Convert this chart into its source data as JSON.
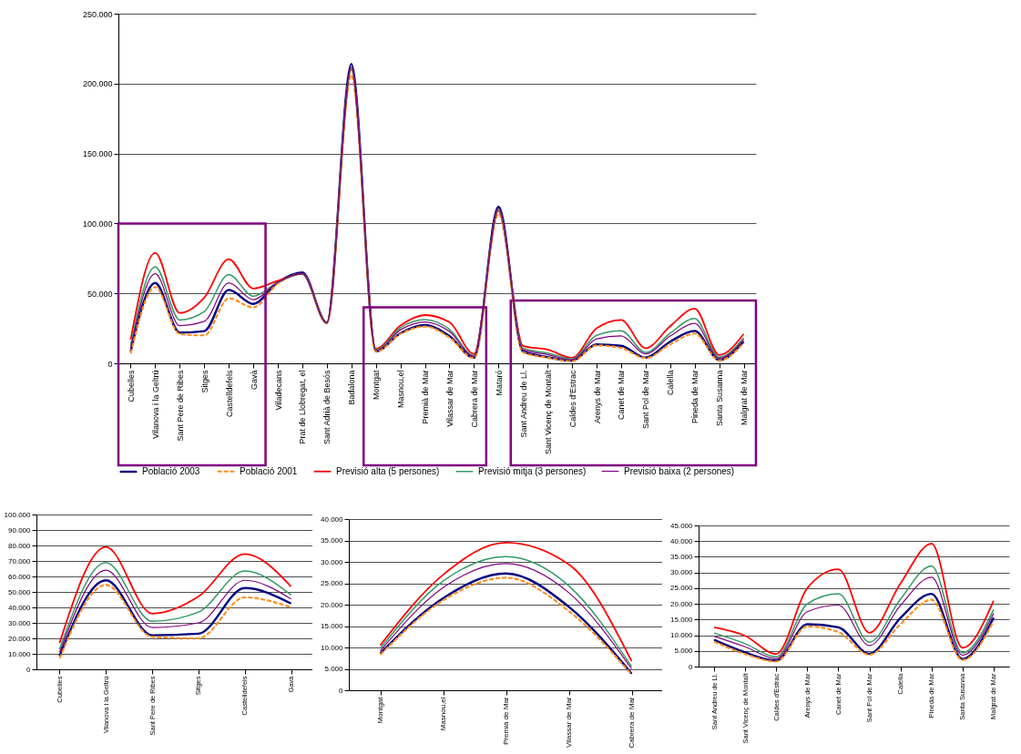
{
  "chart_data": [
    {
      "type": "line",
      "categories": [
        "Cubelles",
        "Vilanova i la Geltrú",
        "Sant Pere de Ribes",
        "Sitges",
        "Castelldefels",
        "Gavà",
        "Viladecans",
        "Prat de Llobregat, el",
        "Sant Adrià de Besós",
        "Badalona",
        "Montgat",
        "Masnou,el",
        "Premià de Mar",
        "Vilassar de Mar",
        "Cabrera de Mar",
        "Mataró",
        "Sant Andreu de Ll.",
        "Sant Vicenç de Montalt",
        "Caldes d'Estrac",
        "Arenys de Mar",
        "Canet de Mar",
        "Sant Pol de Mar",
        "Calella",
        "Pineda de Mar",
        "Santa Susanna",
        "Malgrat de Mar"
      ],
      "series": [
        {
          "name": "Població 2003",
          "color": "#000080",
          "line_style": "solid",
          "values": [
            8500,
            57500,
            22000,
            23000,
            52500,
            42500,
            58000,
            65000,
            29000,
            214000,
            8600,
            21500,
            27300,
            19500,
            3900,
            112000,
            8500,
            4500,
            1900,
            13500,
            12500,
            4100,
            15500,
            23200,
            2400,
            15600
          ]
        },
        {
          "name": "Població 2001",
          "color": "#ff8c1a",
          "line_style": "dashed",
          "values": [
            7000,
            54500,
            21000,
            20000,
            46500,
            40000,
            57000,
            64000,
            28500,
            206000,
            8300,
            21000,
            26300,
            18500,
            3700,
            107000,
            7900,
            4000,
            1600,
            12800,
            11000,
            3800,
            13500,
            21300,
            2100,
            14500
          ]
        },
        {
          "name": "Previsió alta (5 persones)",
          "color": "#ff0000",
          "line_style": "solid",
          "values": [
            17000,
            79000,
            36000,
            47000,
            74500,
            53500,
            59000,
            64000,
            29000,
            210000,
            10500,
            27000,
            34500,
            29400,
            6800,
            109000,
            12500,
            9800,
            4000,
            25000,
            31000,
            10800,
            26500,
            39200,
            6000,
            21000
          ]
        },
        {
          "name": "Previsió mitja (3 persones)",
          "color": "#339966",
          "line_style": "solid",
          "values": [
            13000,
            69000,
            31000,
            37000,
            63500,
            48000,
            58000,
            64000,
            29000,
            211000,
            9800,
            25500,
            31200,
            24400,
            5500,
            110000,
            10700,
            7300,
            3100,
            20000,
            23200,
            7800,
            21500,
            32100,
            4400,
            18200
          ]
        },
        {
          "name": "Previsió baixa (2 persones)",
          "color": "#800080",
          "line_style": "solid",
          "values": [
            11000,
            64000,
            27000,
            30000,
            57500,
            45500,
            58000,
            64000,
            29000,
            212000,
            9200,
            24000,
            29600,
            22800,
            5000,
            111000,
            9700,
            6300,
            2500,
            17500,
            19600,
            6700,
            19500,
            28500,
            3600,
            17000
          ]
        }
      ],
      "ylim": [
        0,
        250000
      ],
      "yticks": [
        {
          "value": 0,
          "label": "0"
        },
        {
          "value": 50000,
          "label": "50.000"
        },
        {
          "value": 100000,
          "label": "100.000"
        },
        {
          "value": 150000,
          "label": "150.000"
        },
        {
          "value": 200000,
          "label": "200.000"
        },
        {
          "value": 250000,
          "label": "250.000"
        }
      ],
      "grid": "y",
      "legend": "bottom"
    },
    {
      "type": "line",
      "categories": [
        "Cubelles",
        "Vilanova i la Geltrú",
        "Sant Pere de Ribes",
        "Sitges",
        "Castelldefels",
        "Gavà"
      ],
      "series": [
        {
          "color": "#000080",
          "line_style": "solid",
          "values": [
            8500,
            57500,
            22000,
            23000,
            52500,
            42500
          ]
        },
        {
          "color": "#ff8c1a",
          "line_style": "dashed",
          "values": [
            7000,
            54500,
            21000,
            20000,
            46500,
            40000
          ]
        },
        {
          "color": "#ff0000",
          "line_style": "solid",
          "values": [
            17000,
            79000,
            36000,
            47000,
            74500,
            53500
          ]
        },
        {
          "color": "#339966",
          "line_style": "solid",
          "values": [
            13000,
            69000,
            31000,
            37000,
            63500,
            48000
          ]
        },
        {
          "color": "#800080",
          "line_style": "solid",
          "values": [
            11000,
            64000,
            27000,
            30000,
            57500,
            45500
          ]
        }
      ],
      "ylim": [
        0,
        100000
      ],
      "yticks": [
        {
          "value": 0,
          "label": "0"
        },
        {
          "value": 10000,
          "label": "10.000"
        },
        {
          "value": 20000,
          "label": "20.000"
        },
        {
          "value": 30000,
          "label": "30.000"
        },
        {
          "value": 40000,
          "label": "40.000"
        },
        {
          "value": 50000,
          "label": "50.000"
        },
        {
          "value": 60000,
          "label": "60.000"
        },
        {
          "value": 70000,
          "label": "70.000"
        },
        {
          "value": 80000,
          "label": "80.000"
        },
        {
          "value": 90000,
          "label": "90.000"
        },
        {
          "value": 100000,
          "label": "100.000"
        }
      ],
      "grid": "y",
      "legend": false
    },
    {
      "type": "line",
      "categories": [
        "Montgat",
        "Masnou,el",
        "Premià de Mar",
        "Vilassar de Mar",
        "Cabrera de Mar"
      ],
      "series": [
        {
          "color": "#000080",
          "line_style": "solid",
          "values": [
            8600,
            21500,
            27300,
            19500,
            3900
          ]
        },
        {
          "color": "#ff8c1a",
          "line_style": "dashed",
          "values": [
            8300,
            21000,
            26300,
            18500,
            3700
          ]
        },
        {
          "color": "#ff0000",
          "line_style": "solid",
          "values": [
            10500,
            27000,
            34500,
            29400,
            6800
          ]
        },
        {
          "color": "#339966",
          "line_style": "solid",
          "values": [
            9800,
            25500,
            31200,
            24400,
            5500
          ]
        },
        {
          "color": "#800080",
          "line_style": "solid",
          "values": [
            9200,
            24000,
            29600,
            22800,
            5000
          ]
        }
      ],
      "ylim": [
        0,
        40000
      ],
      "yticks": [
        {
          "value": 0,
          "label": "0"
        },
        {
          "value": 5000,
          "label": "5.000"
        },
        {
          "value": 10000,
          "label": "10.000"
        },
        {
          "value": 15000,
          "label": "15.000"
        },
        {
          "value": 20000,
          "label": "20.000"
        },
        {
          "value": 25000,
          "label": "25.000"
        },
        {
          "value": 30000,
          "label": "30.000"
        },
        {
          "value": 35000,
          "label": "35.000"
        },
        {
          "value": 40000,
          "label": "40.000"
        }
      ],
      "grid": "y",
      "legend": false
    },
    {
      "type": "line",
      "categories": [
        "Sant Andreu de Ll.",
        "Sant Vicenç de Montalt",
        "Caldes d'Estrac",
        "Arenys de Mar",
        "Canet de Mar",
        "Sant Pol de Mar",
        "Calella",
        "Pineda de Mar",
        "Santa Susanna",
        "Malgrat de Mar"
      ],
      "series": [
        {
          "color": "#000080",
          "line_style": "solid",
          "values": [
            8500,
            4500,
            1900,
            13500,
            12500,
            4100,
            15500,
            23200,
            2400,
            15600
          ]
        },
        {
          "color": "#ff8c1a",
          "line_style": "dashed",
          "values": [
            7900,
            4000,
            1600,
            12800,
            11000,
            3800,
            13500,
            21300,
            2100,
            14500
          ]
        },
        {
          "color": "#ff0000",
          "line_style": "solid",
          "values": [
            12500,
            9800,
            4000,
            25000,
            31000,
            10800,
            26500,
            39200,
            6000,
            21000
          ]
        },
        {
          "color": "#339966",
          "line_style": "solid",
          "values": [
            10700,
            7300,
            3100,
            20000,
            23200,
            7800,
            21500,
            32100,
            4400,
            18200
          ]
        },
        {
          "color": "#800080",
          "line_style": "solid",
          "values": [
            9700,
            6300,
            2500,
            17500,
            19600,
            6700,
            19500,
            28500,
            3600,
            17000
          ]
        }
      ],
      "ylim": [
        0,
        45000
      ],
      "yticks": [
        {
          "value": 0,
          "label": "0"
        },
        {
          "value": 5000,
          "label": "5.000"
        },
        {
          "value": 10000,
          "label": "10.000"
        },
        {
          "value": 15000,
          "label": "15.000"
        },
        {
          "value": 20000,
          "label": "20.000"
        },
        {
          "value": 25000,
          "label": "25.000"
        },
        {
          "value": 30000,
          "label": "30.000"
        },
        {
          "value": 35000,
          "label": "35.000"
        },
        {
          "value": 40000,
          "label": "40.000"
        },
        {
          "value": 45000,
          "label": "45.000"
        }
      ],
      "grid": "y",
      "legend": false
    }
  ]
}
